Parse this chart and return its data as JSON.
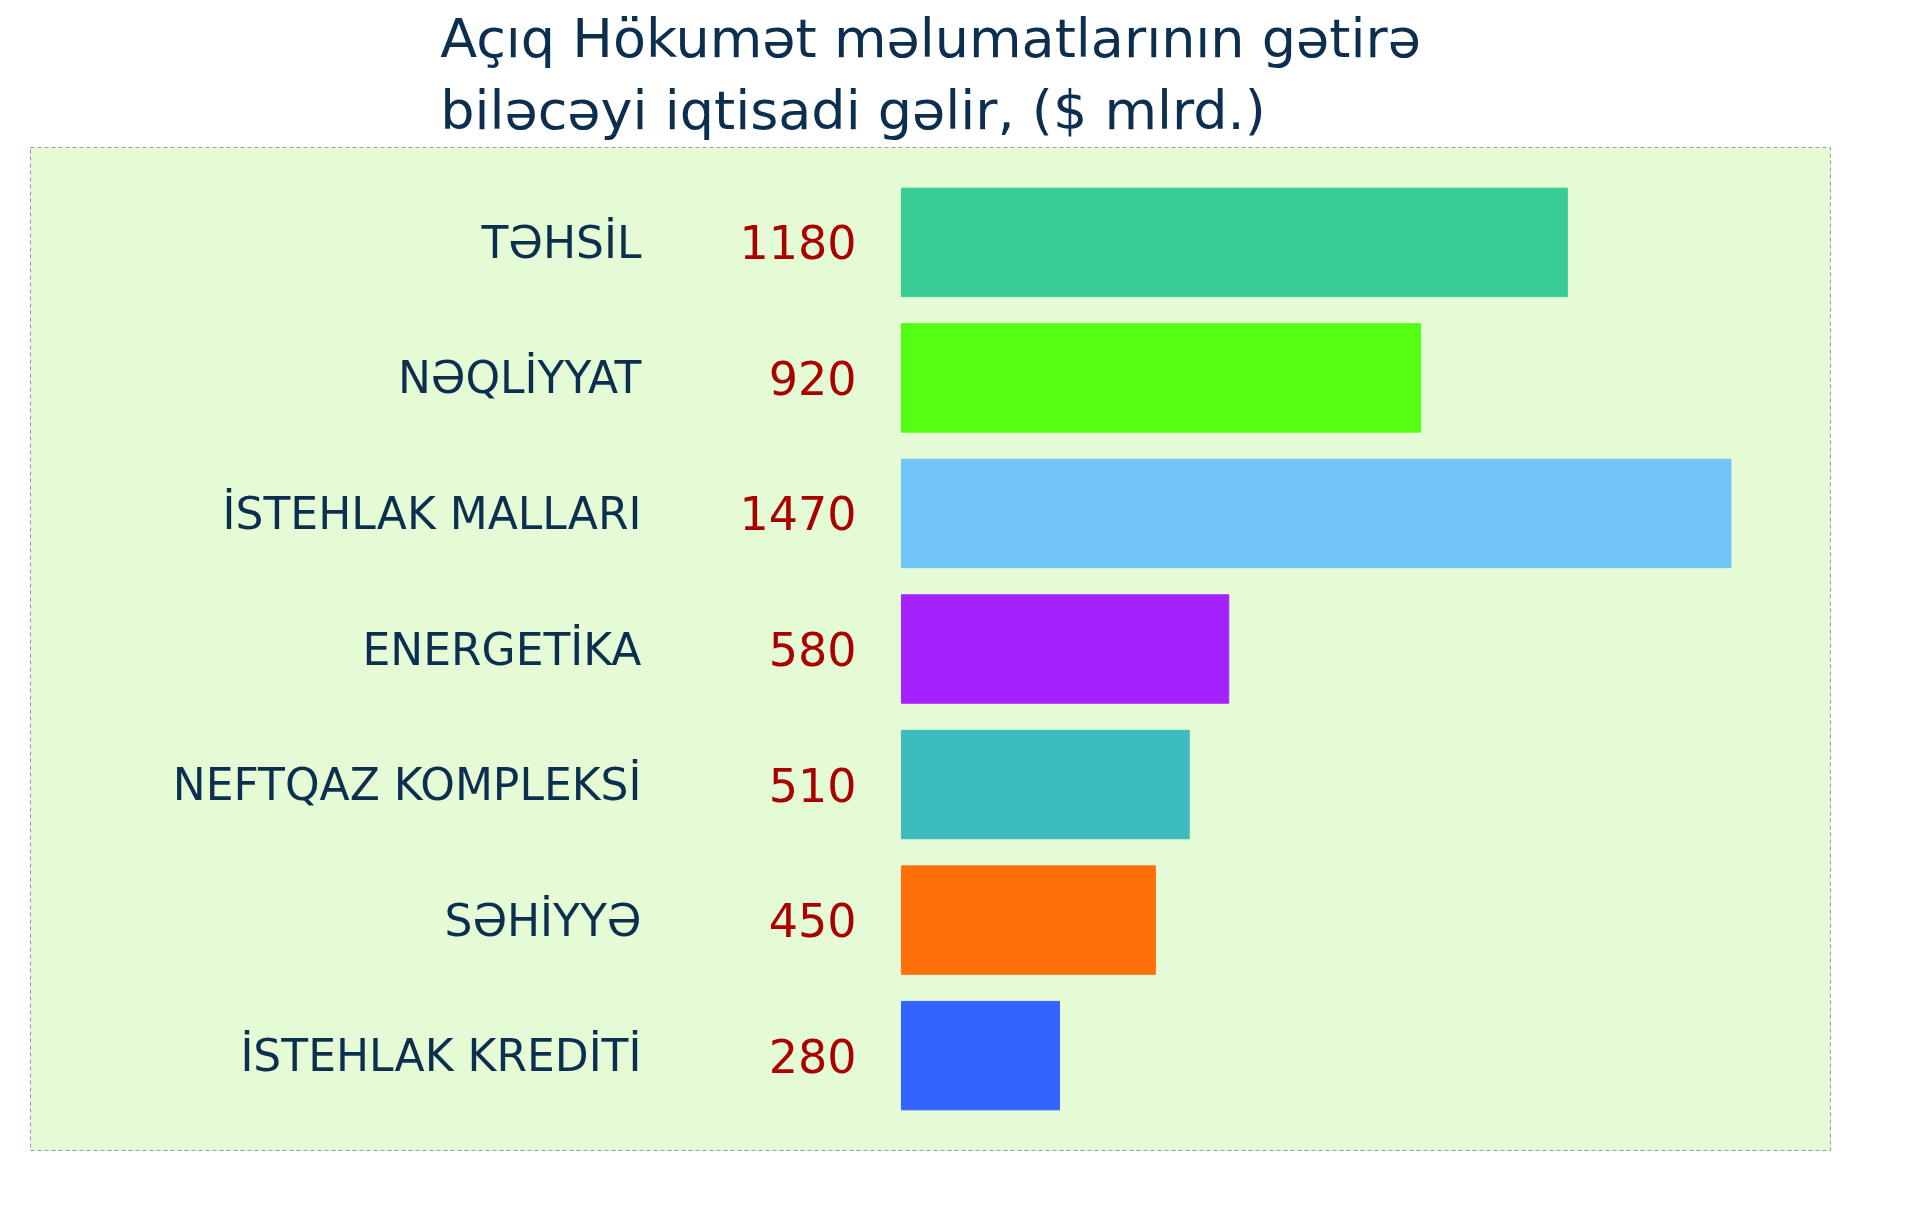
{
  "chart_data": {
    "type": "bar",
    "orientation": "horizontal",
    "title": "Açıq Hökumət məlumatlarının gətirə biləcəyi iqtisadi gəlir, ($ mlrd.)",
    "categories": [
      "TƏHSİL",
      "NƏQLİYYAT",
      "İSTEHLAK MALLARI",
      "ENERGETİKA",
      "NEFTQAZ KOMPLEKSİ",
      "SƏHİYYƏ",
      "İSTEHLAK KREDİTİ"
    ],
    "values": [
      1180,
      920,
      1470,
      580,
      510,
      450,
      280
    ],
    "colors": [
      "#38cc94",
      "#55ff11",
      "#70c4f8",
      "#a522ff",
      "#3cbcbc",
      "#ff6f0a",
      "#3363ff"
    ],
    "data_labels": true,
    "grid": false,
    "legend": false
  }
}
